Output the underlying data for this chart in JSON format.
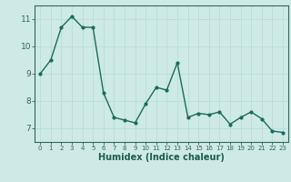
{
  "x": [
    0,
    1,
    2,
    3,
    4,
    5,
    6,
    7,
    8,
    9,
    10,
    11,
    12,
    13,
    14,
    15,
    16,
    17,
    18,
    19,
    20,
    21,
    22,
    23
  ],
  "y": [
    9.0,
    9.5,
    10.7,
    11.1,
    10.7,
    10.7,
    8.3,
    7.4,
    7.3,
    7.2,
    7.9,
    8.5,
    8.4,
    9.4,
    7.4,
    7.55,
    7.5,
    7.6,
    7.15,
    7.4,
    7.6,
    7.35,
    6.9,
    6.85
  ],
  "line_color": "#1a6b5a",
  "marker": "o",
  "markersize": 2.0,
  "linewidth": 1.0,
  "xlabel": "Humidex (Indice chaleur)",
  "xlabel_fontsize": 7,
  "ylabel": "",
  "xlim": [
    -0.5,
    23.5
  ],
  "ylim": [
    6.5,
    11.5
  ],
  "yticks": [
    7,
    8,
    9,
    10,
    11
  ],
  "xticks": [
    0,
    1,
    2,
    3,
    4,
    5,
    6,
    7,
    8,
    9,
    10,
    11,
    12,
    13,
    14,
    15,
    16,
    17,
    18,
    19,
    20,
    21,
    22,
    23
  ],
  "xtick_fontsize": 5.0,
  "ytick_fontsize": 6.5,
  "grid_color": "#b8ddd8",
  "bg_color": "#ceeae6",
  "spine_color": "#336655",
  "tick_color": "#336655",
  "label_color": "#1a5c4a"
}
